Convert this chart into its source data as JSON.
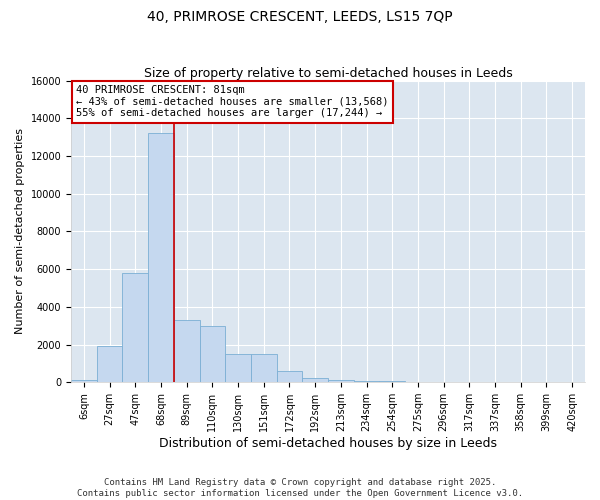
{
  "title_line1": "40, PRIMROSE CRESCENT, LEEDS, LS15 7QP",
  "title_line2": "Size of property relative to semi-detached houses in Leeds",
  "xlabel": "Distribution of semi-detached houses by size in Leeds",
  "ylabel": "Number of semi-detached properties",
  "bar_color": "#c5d8ef",
  "bar_edge_color": "#7bafd4",
  "plot_bg_color": "#dce6f0",
  "fig_bg_color": "#ffffff",
  "categories": [
    "6sqm",
    "27sqm",
    "47sqm",
    "68sqm",
    "89sqm",
    "110sqm",
    "130sqm",
    "151sqm",
    "172sqm",
    "192sqm",
    "213sqm",
    "234sqm",
    "254sqm",
    "275sqm",
    "296sqm",
    "317sqm",
    "337sqm",
    "358sqm",
    "399sqm",
    "420sqm"
  ],
  "values": [
    100,
    1900,
    5800,
    13200,
    3300,
    3000,
    1500,
    1500,
    580,
    200,
    130,
    80,
    50,
    30,
    10,
    5,
    3,
    2,
    1,
    1
  ],
  "property_label": "40 PRIMROSE CRESCENT: 81sqm",
  "pct_smaller": 43,
  "pct_smaller_count": 13568,
  "pct_larger": 55,
  "pct_larger_count": 17244,
  "vline_bin_index": 3,
  "ylim_max": 16000,
  "yticks": [
    0,
    2000,
    4000,
    6000,
    8000,
    10000,
    12000,
    14000,
    16000
  ],
  "annotation_box_facecolor": "#ffffff",
  "annotation_box_edgecolor": "#cc0000",
  "vline_color": "#cc0000",
  "footer_line1": "Contains HM Land Registry data © Crown copyright and database right 2025.",
  "footer_line2": "Contains public sector information licensed under the Open Government Licence v3.0.",
  "title_fontsize": 10,
  "subtitle_fontsize": 9,
  "xlabel_fontsize": 9,
  "ylabel_fontsize": 8,
  "tick_fontsize": 7,
  "annotation_fontsize": 7.5,
  "footer_fontsize": 6.5
}
